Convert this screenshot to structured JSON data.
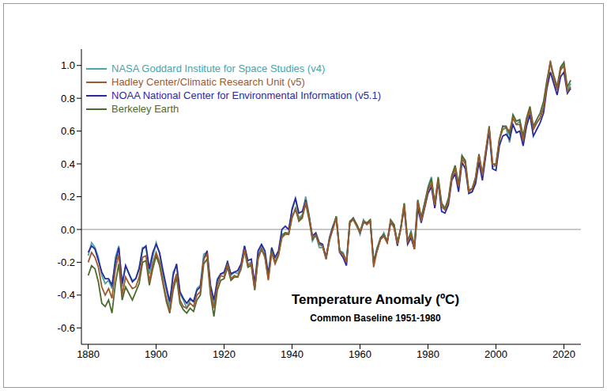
{
  "chart_data": {
    "type": "line",
    "title": "Temperature Anomaly (ºC)",
    "subtitle": "Common Baseline 1951-1980",
    "legend": "upper left",
    "grid": false,
    "x": [
      1880,
      1881,
      1882,
      1883,
      1884,
      1885,
      1886,
      1887,
      1888,
      1889,
      1890,
      1891,
      1892,
      1893,
      1894,
      1895,
      1896,
      1897,
      1898,
      1899,
      1900,
      1901,
      1902,
      1903,
      1904,
      1905,
      1906,
      1907,
      1908,
      1909,
      1910,
      1911,
      1912,
      1913,
      1914,
      1915,
      1916,
      1917,
      1918,
      1919,
      1920,
      1921,
      1922,
      1923,
      1924,
      1925,
      1926,
      1927,
      1928,
      1929,
      1930,
      1931,
      1932,
      1933,
      1934,
      1935,
      1936,
      1937,
      1938,
      1939,
      1940,
      1941,
      1942,
      1943,
      1944,
      1945,
      1946,
      1947,
      1948,
      1949,
      1950,
      1951,
      1952,
      1953,
      1954,
      1955,
      1956,
      1957,
      1958,
      1959,
      1960,
      1961,
      1962,
      1963,
      1964,
      1965,
      1966,
      1967,
      1968,
      1969,
      1970,
      1971,
      1972,
      1973,
      1974,
      1975,
      1976,
      1977,
      1978,
      1979,
      1980,
      1981,
      1982,
      1983,
      1984,
      1985,
      1986,
      1987,
      1988,
      1989,
      1990,
      1991,
      1992,
      1993,
      1994,
      1995,
      1996,
      1997,
      1998,
      1999,
      2000,
      2001,
      2002,
      2003,
      2004,
      2005,
      2006,
      2007,
      2008,
      2009,
      2010,
      2011,
      2012,
      2013,
      2014,
      2015,
      2016,
      2017,
      2018,
      2019,
      2020,
      2021,
      2022
    ],
    "xlim": [
      1878,
      2025
    ],
    "xticks": [
      1880,
      1900,
      1920,
      1940,
      1960,
      1980,
      2000,
      2020
    ],
    "ylim": [
      -0.7,
      1.1
    ],
    "yticks": [
      -0.6,
      -0.4,
      -0.2,
      {
        "value": 0,
        "label": "0.0"
      },
      0.2,
      0.4,
      0.6,
      0.8,
      {
        "value": 1,
        "label": "1.0"
      }
    ],
    "series": [
      {
        "name": "NASA Goddard Institute for Space Studies (v4)",
        "color": "#4aa3a8",
        "values": [
          -0.16,
          -0.08,
          -0.11,
          -0.17,
          -0.28,
          -0.33,
          -0.31,
          -0.36,
          -0.17,
          -0.1,
          -0.35,
          -0.22,
          -0.27,
          -0.31,
          -0.3,
          -0.23,
          -0.11,
          -0.11,
          -0.27,
          -0.17,
          -0.08,
          -0.15,
          -0.28,
          -0.37,
          -0.47,
          -0.26,
          -0.22,
          -0.39,
          -0.43,
          -0.48,
          -0.43,
          -0.44,
          -0.36,
          -0.34,
          -0.15,
          -0.14,
          -0.36,
          -0.46,
          -0.3,
          -0.27,
          -0.27,
          -0.19,
          -0.28,
          -0.26,
          -0.27,
          -0.22,
          -0.1,
          -0.21,
          -0.2,
          -0.36,
          -0.16,
          -0.1,
          -0.16,
          -0.29,
          -0.12,
          -0.2,
          -0.15,
          -0.03,
          -0.02,
          -0.02,
          0.13,
          0.19,
          0.07,
          0.09,
          0.2,
          0.09,
          -0.07,
          -0.03,
          -0.11,
          -0.11,
          -0.17,
          -0.07,
          0.01,
          0.08,
          -0.13,
          -0.14,
          -0.19,
          0.05,
          0.06,
          0.03,
          -0.03,
          0.06,
          0.03,
          0.05,
          -0.2,
          -0.11,
          -0.06,
          -0.02,
          -0.08,
          0.05,
          0.03,
          -0.08,
          0.01,
          0.16,
          -0.07,
          -0.01,
          -0.1,
          0.18,
          0.07,
          0.16,
          0.26,
          0.32,
          0.14,
          0.31,
          0.16,
          0.12,
          0.18,
          0.32,
          0.39,
          0.27,
          0.45,
          0.4,
          0.22,
          0.23,
          0.31,
          0.45,
          0.33,
          0.46,
          0.61,
          0.38,
          0.39,
          0.54,
          0.63,
          0.62,
          0.53,
          0.68,
          0.64,
          0.66,
          0.54,
          0.65,
          0.72,
          0.61,
          0.65,
          0.68,
          0.75,
          0.9,
          1.01,
          0.92,
          0.85,
          0.98,
          1.01,
          0.85,
          0.89
        ]
      },
      {
        "name": "Hadley Center/Climatic Research Unit (v5)",
        "color": "#9c5a2c",
        "values": [
          -0.2,
          -0.14,
          -0.17,
          -0.23,
          -0.35,
          -0.4,
          -0.36,
          -0.42,
          -0.24,
          -0.15,
          -0.4,
          -0.29,
          -0.33,
          -0.36,
          -0.35,
          -0.29,
          -0.17,
          -0.16,
          -0.32,
          -0.21,
          -0.14,
          -0.2,
          -0.32,
          -0.42,
          -0.5,
          -0.34,
          -0.27,
          -0.43,
          -0.47,
          -0.48,
          -0.45,
          -0.47,
          -0.4,
          -0.38,
          -0.18,
          -0.15,
          -0.38,
          -0.48,
          -0.34,
          -0.28,
          -0.29,
          -0.21,
          -0.3,
          -0.28,
          -0.29,
          -0.23,
          -0.12,
          -0.22,
          -0.21,
          -0.36,
          -0.18,
          -0.12,
          -0.17,
          -0.31,
          -0.14,
          -0.21,
          -0.16,
          -0.05,
          -0.03,
          -0.03,
          0.08,
          0.12,
          0.06,
          0.08,
          0.17,
          0.08,
          -0.05,
          -0.04,
          -0.09,
          -0.1,
          -0.18,
          -0.06,
          0.0,
          0.07,
          -0.14,
          -0.15,
          -0.2,
          0.04,
          0.06,
          0.02,
          -0.02,
          0.05,
          0.03,
          0.05,
          -0.23,
          -0.13,
          -0.06,
          -0.04,
          -0.08,
          0.05,
          0.01,
          -0.09,
          0.0,
          0.15,
          -0.08,
          -0.03,
          -0.12,
          0.17,
          0.05,
          0.14,
          0.24,
          0.28,
          0.15,
          0.3,
          0.14,
          0.12,
          0.17,
          0.31,
          0.37,
          0.26,
          0.43,
          0.4,
          0.23,
          0.25,
          0.31,
          0.45,
          0.33,
          0.48,
          0.62,
          0.4,
          0.39,
          0.55,
          0.61,
          0.62,
          0.6,
          0.68,
          0.64,
          0.64,
          0.54,
          0.66,
          0.73,
          0.61,
          0.65,
          0.68,
          0.74,
          0.88,
          1.03,
          0.92,
          0.85,
          0.97,
          1.0,
          0.84,
          0.87
        ]
      },
      {
        "name": "NOAA National Center for Environmental Information (v5.1)",
        "color": "#2a2a9c",
        "values": [
          -0.14,
          -0.1,
          -0.12,
          -0.19,
          -0.26,
          -0.3,
          -0.3,
          -0.34,
          -0.2,
          -0.11,
          -0.33,
          -0.22,
          -0.27,
          -0.32,
          -0.3,
          -0.24,
          -0.12,
          -0.1,
          -0.24,
          -0.14,
          -0.09,
          -0.14,
          -0.25,
          -0.35,
          -0.44,
          -0.28,
          -0.21,
          -0.38,
          -0.42,
          -0.45,
          -0.42,
          -0.44,
          -0.37,
          -0.35,
          -0.18,
          -0.13,
          -0.34,
          -0.43,
          -0.31,
          -0.27,
          -0.26,
          -0.2,
          -0.27,
          -0.26,
          -0.25,
          -0.21,
          -0.1,
          -0.19,
          -0.18,
          -0.33,
          -0.13,
          -0.09,
          -0.13,
          -0.27,
          -0.11,
          -0.17,
          -0.13,
          0.0,
          0.02,
          0.0,
          0.12,
          0.19,
          0.1,
          0.11,
          0.18,
          0.08,
          -0.04,
          -0.02,
          -0.08,
          -0.09,
          -0.17,
          -0.05,
          0.02,
          0.07,
          -0.14,
          -0.17,
          -0.22,
          0.04,
          0.07,
          0.03,
          -0.02,
          0.04,
          0.04,
          0.05,
          -0.19,
          -0.13,
          -0.06,
          -0.04,
          -0.08,
          0.04,
          0.02,
          -0.1,
          0.01,
          0.13,
          -0.09,
          -0.05,
          -0.12,
          0.13,
          0.04,
          0.13,
          0.22,
          0.26,
          0.13,
          0.29,
          0.11,
          0.1,
          0.15,
          0.3,
          0.34,
          0.23,
          0.41,
          0.37,
          0.22,
          0.23,
          0.28,
          0.41,
          0.3,
          0.45,
          0.6,
          0.37,
          0.36,
          0.51,
          0.57,
          0.58,
          0.55,
          0.64,
          0.59,
          0.6,
          0.51,
          0.63,
          0.7,
          0.57,
          0.61,
          0.65,
          0.71,
          0.86,
          0.96,
          0.89,
          0.82,
          0.93,
          0.96,
          0.83,
          0.86
        ]
      },
      {
        "name": "Berkeley Earth",
        "color": "#4b6b2e",
        "values": [
          -0.28,
          -0.22,
          -0.24,
          -0.32,
          -0.45,
          -0.47,
          -0.43,
          -0.51,
          -0.33,
          -0.21,
          -0.43,
          -0.35,
          -0.39,
          -0.43,
          -0.38,
          -0.33,
          -0.2,
          -0.19,
          -0.34,
          -0.24,
          -0.16,
          -0.22,
          -0.33,
          -0.44,
          -0.51,
          -0.37,
          -0.29,
          -0.45,
          -0.49,
          -0.51,
          -0.48,
          -0.5,
          -0.43,
          -0.4,
          -0.21,
          -0.18,
          -0.4,
          -0.53,
          -0.37,
          -0.31,
          -0.3,
          -0.23,
          -0.31,
          -0.29,
          -0.29,
          -0.24,
          -0.13,
          -0.23,
          -0.22,
          -0.37,
          -0.17,
          -0.12,
          -0.16,
          -0.3,
          -0.13,
          -0.2,
          -0.15,
          -0.04,
          -0.02,
          -0.03,
          0.07,
          0.13,
          0.05,
          0.07,
          0.16,
          0.06,
          -0.06,
          -0.03,
          -0.09,
          -0.1,
          -0.18,
          -0.06,
          0.01,
          0.08,
          -0.13,
          -0.15,
          -0.2,
          0.05,
          0.07,
          0.03,
          -0.01,
          0.05,
          0.04,
          0.06,
          -0.21,
          -0.12,
          -0.05,
          -0.03,
          -0.07,
          0.06,
          0.03,
          -0.08,
          0.01,
          0.16,
          -0.07,
          -0.02,
          -0.1,
          0.18,
          0.07,
          0.16,
          0.25,
          0.31,
          0.16,
          0.32,
          0.16,
          0.13,
          0.19,
          0.33,
          0.39,
          0.27,
          0.45,
          0.42,
          0.24,
          0.25,
          0.32,
          0.46,
          0.34,
          0.48,
          0.63,
          0.4,
          0.4,
          0.55,
          0.63,
          0.63,
          0.58,
          0.7,
          0.66,
          0.67,
          0.57,
          0.68,
          0.75,
          0.63,
          0.67,
          0.71,
          0.78,
          0.91,
          1.02,
          0.94,
          0.87,
          0.99,
          1.02,
          0.87,
          0.91
        ]
      }
    ]
  }
}
